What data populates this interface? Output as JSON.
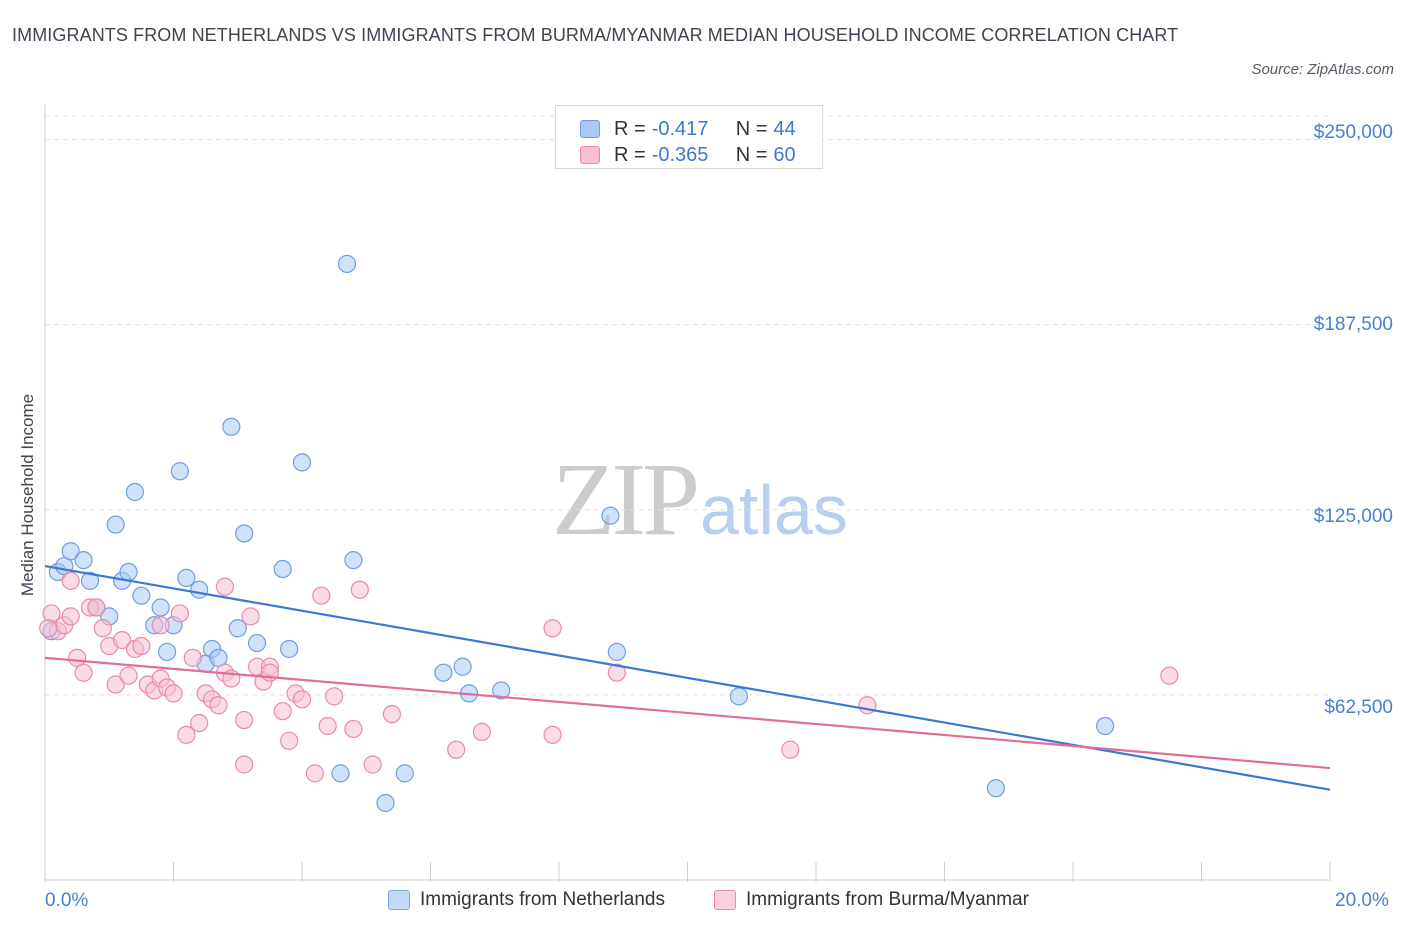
{
  "title": "IMMIGRANTS FROM NETHERLANDS VS IMMIGRANTS FROM BURMA/MYANMAR MEDIAN HOUSEHOLD INCOME CORRELATION CHART",
  "source": "Source: ZipAtlas.com",
  "watermark": {
    "zip": "ZIP",
    "atlas": "atlas"
  },
  "stats": [
    {
      "r_label": "R = ",
      "r_value": "-0.417",
      "n_label": "N = ",
      "n_value": "44"
    },
    {
      "r_label": "R = ",
      "r_value": "-0.365",
      "n_label": "N = ",
      "n_value": "60"
    }
  ],
  "legend": [
    "Immigrants from Netherlands",
    "Immigrants from Burma/Myanmar"
  ],
  "colors": {
    "blue_fill": "#aac8f5",
    "blue_stroke": "#6f9ee0",
    "blue_line": "#3a78d4",
    "pink_fill": "#f7bfd2",
    "pink_stroke": "#e88aab",
    "pink_line": "#e06f98",
    "tick_text": "#4a7fd0",
    "grid": "#e0e0e0"
  },
  "chart_data": {
    "type": "scatter",
    "title": "IMMIGRANTS FROM NETHERLANDS VS IMMIGRANTS FROM BURMA/MYANMAR MEDIAN HOUSEHOLD INCOME CORRELATION CHART",
    "xlabel": "",
    "ylabel": "Median Household Income",
    "xlim": [
      0,
      20
    ],
    "ylim": [
      0,
      262000
    ],
    "x_tick_labels": [
      "0.0%",
      "20.0%"
    ],
    "y_ticks": [
      62500,
      125000,
      187500,
      250000
    ],
    "y_tick_labels": [
      "$62,500",
      "$125,000",
      "$187,500",
      "$250,000"
    ],
    "grid": true,
    "series": [
      {
        "name": "Immigrants from Netherlands",
        "points": [
          [
            0.1,
            84000
          ],
          [
            0.2,
            104000
          ],
          [
            0.3,
            106000
          ],
          [
            0.4,
            111000
          ],
          [
            0.6,
            108000
          ],
          [
            0.7,
            101000
          ],
          [
            0.8,
            92000
          ],
          [
            1.0,
            89000
          ],
          [
            1.1,
            120000
          ],
          [
            1.2,
            101000
          ],
          [
            1.3,
            104000
          ],
          [
            1.4,
            131000
          ],
          [
            1.5,
            96000
          ],
          [
            1.7,
            86000
          ],
          [
            1.8,
            92000
          ],
          [
            1.9,
            77000
          ],
          [
            2.0,
            86000
          ],
          [
            2.1,
            138000
          ],
          [
            2.2,
            102000
          ],
          [
            2.4,
            98000
          ],
          [
            2.5,
            73000
          ],
          [
            2.6,
            78000
          ],
          [
            2.7,
            75000
          ],
          [
            2.9,
            153000
          ],
          [
            3.0,
            85000
          ],
          [
            3.1,
            117000
          ],
          [
            3.3,
            80000
          ],
          [
            3.7,
            105000
          ],
          [
            3.8,
            78000
          ],
          [
            4.0,
            141000
          ],
          [
            4.6,
            36000
          ],
          [
            4.7,
            208000
          ],
          [
            4.8,
            108000
          ],
          [
            5.3,
            26000
          ],
          [
            5.6,
            36000
          ],
          [
            6.2,
            70000
          ],
          [
            6.5,
            72000
          ],
          [
            6.6,
            63000
          ],
          [
            7.1,
            64000
          ],
          [
            8.8,
            123000
          ],
          [
            8.9,
            77000
          ],
          [
            10.8,
            62000
          ],
          [
            14.8,
            31000
          ],
          [
            16.5,
            52000
          ]
        ]
      },
      {
        "name": "Immigrants from Burma/Myanmar",
        "points": [
          [
            0.1,
            90000
          ],
          [
            0.2,
            84000
          ],
          [
            0.3,
            86000
          ],
          [
            0.4,
            89000
          ],
          [
            0.4,
            101000
          ],
          [
            0.5,
            75000
          ],
          [
            0.6,
            70000
          ],
          [
            0.7,
            92000
          ],
          [
            0.8,
            92000
          ],
          [
            0.9,
            85000
          ],
          [
            1.0,
            79000
          ],
          [
            1.1,
            66000
          ],
          [
            1.2,
            81000
          ],
          [
            1.3,
            69000
          ],
          [
            1.4,
            78000
          ],
          [
            1.5,
            79000
          ],
          [
            1.6,
            66000
          ],
          [
            1.7,
            64000
          ],
          [
            1.8,
            68000
          ],
          [
            1.8,
            86000
          ],
          [
            1.9,
            65000
          ],
          [
            2.0,
            63000
          ],
          [
            2.1,
            90000
          ],
          [
            2.2,
            49000
          ],
          [
            2.3,
            75000
          ],
          [
            2.4,
            53000
          ],
          [
            2.5,
            63000
          ],
          [
            2.6,
            61000
          ],
          [
            2.7,
            59000
          ],
          [
            2.8,
            70000
          ],
          [
            2.8,
            99000
          ],
          [
            2.9,
            68000
          ],
          [
            3.1,
            39000
          ],
          [
            3.1,
            54000
          ],
          [
            3.2,
            89000
          ],
          [
            3.3,
            72000
          ],
          [
            3.4,
            67000
          ],
          [
            3.5,
            72000
          ],
          [
            3.5,
            70000
          ],
          [
            3.7,
            57000
          ],
          [
            3.8,
            47000
          ],
          [
            3.9,
            63000
          ],
          [
            4.0,
            61000
          ],
          [
            4.2,
            36000
          ],
          [
            4.3,
            96000
          ],
          [
            4.4,
            52000
          ],
          [
            4.5,
            62000
          ],
          [
            4.8,
            51000
          ],
          [
            4.9,
            98000
          ],
          [
            5.1,
            39000
          ],
          [
            5.4,
            56000
          ],
          [
            6.4,
            44000
          ],
          [
            6.8,
            50000
          ],
          [
            7.9,
            85000
          ],
          [
            7.9,
            49000
          ],
          [
            8.9,
            70000
          ],
          [
            11.6,
            44000
          ],
          [
            12.8,
            59000
          ],
          [
            17.5,
            69000
          ],
          [
            0.05,
            85000
          ]
        ]
      }
    ],
    "trendlines": [
      {
        "series": "Immigrants from Netherlands",
        "x": [
          0,
          20
        ],
        "y": [
          106000,
          30500
        ]
      },
      {
        "series": "Immigrants from Burma/Myanmar",
        "x": [
          0,
          20
        ],
        "y": [
          75000,
          37800
        ]
      }
    ]
  }
}
